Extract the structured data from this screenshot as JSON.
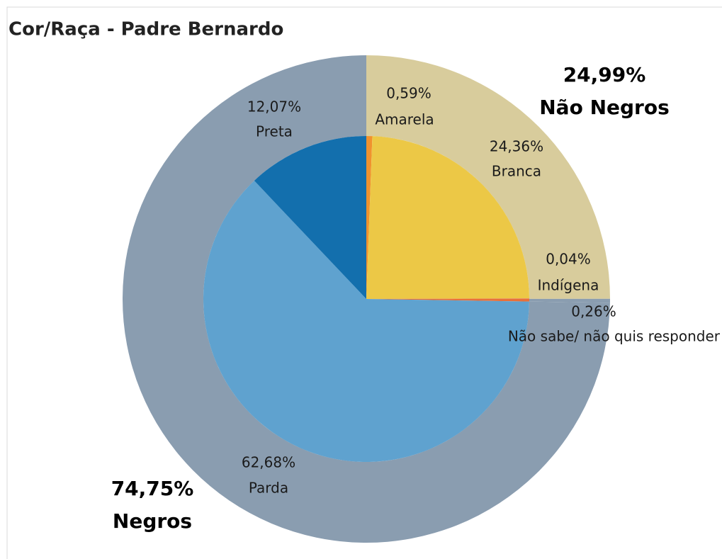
{
  "chart_data": {
    "type": "pie",
    "title": "Cor/Raça - Padre Bernardo",
    "inner": {
      "categories": [
        "Amarela",
        "Branca",
        "Indígena",
        "Não sabe/ não quis responder",
        "Parda",
        "Preta"
      ],
      "values": [
        0.59,
        24.36,
        0.04,
        0.26,
        62.68,
        12.07
      ],
      "value_labels": [
        "0,59%",
        "24,36%",
        "0,04%",
        "0,26%",
        "62,68%",
        "12,07%"
      ],
      "colors": [
        "#f0922e",
        "#ecc846",
        "#e0603a",
        "#e8703a",
        "#5fa2cf",
        "#136fad"
      ]
    },
    "outer": {
      "categories": [
        "Não Negros",
        null,
        "Negros"
      ],
      "values": [
        24.99,
        0.26,
        74.75
      ],
      "value_labels": [
        "24,99%",
        null,
        "74,75%"
      ],
      "colors": [
        "#d8cc9c",
        "#8a9db0",
        "#8a9db0"
      ]
    }
  }
}
